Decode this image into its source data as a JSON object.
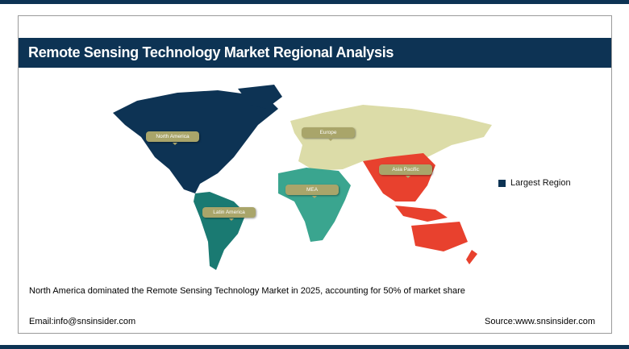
{
  "header": {
    "title": "Remote Sensing Technology Market Regional Analysis"
  },
  "map": {
    "regions": [
      {
        "label": "North America",
        "color": "#0d3354"
      },
      {
        "label": "Europe",
        "color": "#dcdca8"
      },
      {
        "label": "Asia Pacific",
        "color": "#e8412e"
      },
      {
        "label": "MEA",
        "color": "#3aa58f"
      },
      {
        "label": "Latin America",
        "color": "#1a7a72"
      }
    ],
    "label_color": "#a9a56a"
  },
  "legend": {
    "label": "Largest Region",
    "color": "#0d3354"
  },
  "summary": "North America dominated the Remote Sensing Technology Market in 2025, accounting for 50% of market share",
  "footer": {
    "email": "Email:info@snsinsider.com",
    "source": "Source:www.snsinsider.com"
  }
}
